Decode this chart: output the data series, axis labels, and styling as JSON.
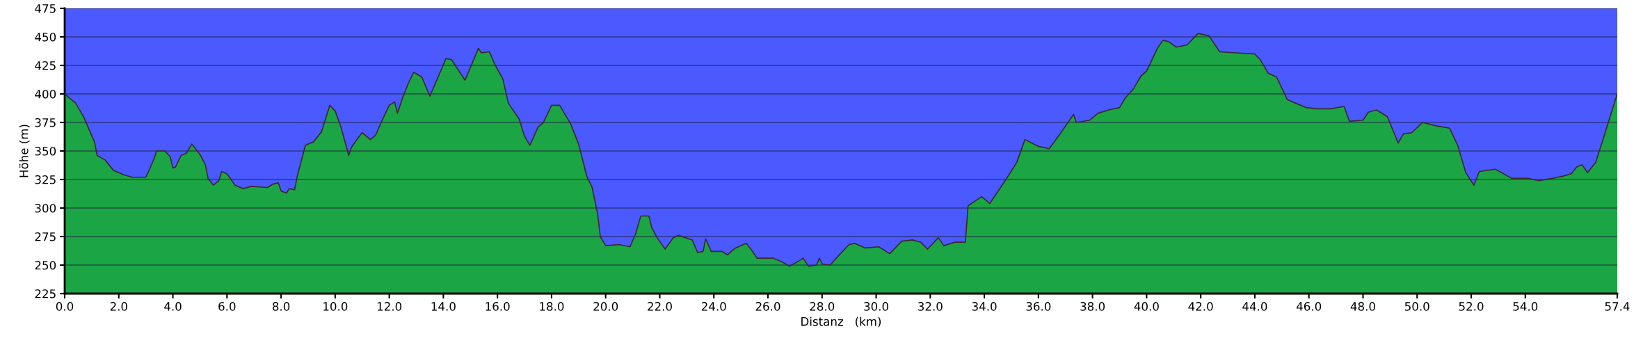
{
  "chart_data": {
    "type": "area",
    "xlabel": "Distanz   (km)",
    "ylabel": "Höhe (m)",
    "grid": "y",
    "xlim": [
      0,
      57.4
    ],
    "ylim": [
      225,
      475
    ],
    "xticks": [
      {
        "value": 0,
        "label": "0.0"
      },
      {
        "value": 2,
        "label": "2.0"
      },
      {
        "value": 4,
        "label": "4.0"
      },
      {
        "value": 6,
        "label": "6.0"
      },
      {
        "value": 8,
        "label": "8.0"
      },
      {
        "value": 10,
        "label": "10.0"
      },
      {
        "value": 12,
        "label": "12.0"
      },
      {
        "value": 14,
        "label": "14.0"
      },
      {
        "value": 16,
        "label": "16.0"
      },
      {
        "value": 18,
        "label": "18.0"
      },
      {
        "value": 20,
        "label": "20.0"
      },
      {
        "value": 22,
        "label": "22.0"
      },
      {
        "value": 24,
        "label": "24.0"
      },
      {
        "value": 26,
        "label": "26.0"
      },
      {
        "value": 28,
        "label": "28.0"
      },
      {
        "value": 30,
        "label": "30.0"
      },
      {
        "value": 32,
        "label": "32.0"
      },
      {
        "value": 34,
        "label": "34.0"
      },
      {
        "value": 36,
        "label": "36.0"
      },
      {
        "value": 38,
        "label": "38.0"
      },
      {
        "value": 40,
        "label": "40.0"
      },
      {
        "value": 42,
        "label": "42.0"
      },
      {
        "value": 44,
        "label": "44.0"
      },
      {
        "value": 46,
        "label": "46.0"
      },
      {
        "value": 48,
        "label": "48.0"
      },
      {
        "value": 50,
        "label": "50.0"
      },
      {
        "value": 52,
        "label": "52.0"
      },
      {
        "value": 54,
        "label": "54.0"
      },
      {
        "value": 57.4,
        "label": "57.4"
      }
    ],
    "yticks": [
      225,
      250,
      275,
      300,
      325,
      350,
      375,
      400,
      425,
      450,
      475
    ],
    "series": [
      {
        "color": "#1ca544",
        "x": [
          0,
          0.2,
          0.4,
          0.7,
          1.1,
          1.2,
          1.5,
          1.8,
          2.2,
          2.5,
          3.0,
          3.1,
          3.3,
          3.4,
          3.7,
          3.9,
          4.0,
          4.1,
          4.3,
          4.5,
          4.7,
          5.0,
          5.2,
          5.3,
          5.5,
          5.7,
          5.8,
          6.0,
          6.3,
          6.6,
          6.9,
          7.5,
          7.7,
          7.9,
          8.0,
          8.2,
          8.3,
          8.5,
          8.6,
          8.8,
          8.9,
          9.2,
          9.5,
          9.8,
          10.0,
          10.2,
          10.4,
          10.5,
          10.6,
          10.8,
          11.0,
          11.3,
          11.5,
          11.7,
          12.0,
          12.2,
          12.3,
          12.5,
          12.7,
          12.9,
          13.2,
          13.5,
          14.1,
          14.3,
          14.8,
          15.3,
          15.4,
          15.7,
          15.9,
          16.2,
          16.4,
          16.8,
          17.0,
          17.2,
          17.5,
          17.7,
          18.0,
          18.3,
          18.7,
          19.0,
          19.3,
          19.5,
          19.7,
          19.8,
          20.0,
          20.5,
          20.9,
          21.1,
          21.3,
          21.6,
          21.7,
          21.9,
          22.2,
          22.5,
          22.7,
          23.2,
          23.4,
          23.6,
          23.7,
          23.9,
          24.3,
          24.5,
          24.8,
          25.2,
          25.4,
          25.6,
          26.2,
          26.5,
          26.8,
          27.1,
          27.3,
          27.5,
          27.8,
          27.9,
          28.0,
          28.3,
          28.6,
          29.0,
          29.2,
          29.6,
          30.1,
          30.5,
          30.95,
          31.35,
          31.65,
          31.9,
          32.3,
          32.5,
          32.9,
          33.3,
          33.4,
          33.9,
          34.2,
          34.8,
          35.2,
          35.5,
          36.0,
          36.4,
          36.8,
          37.3,
          37.4,
          37.9,
          38.2,
          38.6,
          39.0,
          39.2,
          39.5,
          39.8,
          40.0,
          40.4,
          40.6,
          40.8,
          41.1,
          41.5,
          41.9,
          42.3,
          42.7,
          43.3,
          44.0,
          44.2,
          44.5,
          44.8,
          45.2,
          45.5,
          45.9,
          46.3,
          46.8,
          47.3,
          47.5,
          48.0,
          48.2,
          48.5,
          48.9,
          49.3,
          49.5,
          49.8,
          50.2,
          50.7,
          51.2,
          51.5,
          51.8,
          52.1,
          52.3,
          52.9,
          53.5,
          54.1,
          54.5,
          55.0,
          55.4,
          55.7,
          55.9,
          56.1,
          56.3,
          56.6,
          56.9,
          57.2,
          57.4
        ],
        "values": [
          400,
          396,
          392,
          380,
          358,
          346,
          342,
          333,
          329,
          327,
          327,
          332,
          343,
          350,
          350,
          345,
          335,
          336,
          346,
          348,
          356,
          347,
          338,
          326,
          320,
          324,
          332,
          330,
          320,
          317,
          319,
          318,
          321,
          322,
          315,
          313,
          317,
          316,
          328,
          346,
          355,
          358,
          367,
          390,
          385,
          372,
          355,
          346,
          353,
          360,
          366,
          360,
          364,
          375,
          390,
          393,
          383,
          397,
          409,
          419,
          415,
          398,
          431,
          430,
          412,
          440,
          436,
          437,
          426,
          413,
          392,
          378,
          363,
          355,
          371,
          375,
          390,
          390,
          374,
          356,
          328,
          318,
          295,
          275,
          267,
          268,
          266,
          277,
          293,
          293,
          283,
          274,
          264,
          274,
          276,
          272,
          261,
          262,
          273,
          262,
          262,
          259,
          265,
          269,
          263,
          256,
          256,
          253,
          249,
          253,
          256,
          249,
          250,
          256,
          251,
          250,
          258,
          268,
          269,
          265,
          266,
          260,
          271,
          272,
          270,
          264,
          274,
          267,
          270,
          270,
          302,
          310,
          304,
          325,
          340,
          360,
          354,
          352,
          365,
          382,
          375,
          377,
          383,
          386,
          388,
          396,
          404,
          416,
          420,
          440,
          447,
          446,
          441,
          443,
          453,
          451,
          437,
          436,
          435,
          430,
          418,
          415,
          395,
          392,
          388,
          387,
          387,
          389,
          376,
          377,
          384,
          386,
          380,
          357,
          365,
          366,
          375,
          372,
          370,
          355,
          331,
          320,
          332,
          334,
          326,
          326,
          324,
          326,
          328,
          330,
          336,
          338,
          331,
          340,
          362,
          385,
          400
        ]
      }
    ]
  }
}
